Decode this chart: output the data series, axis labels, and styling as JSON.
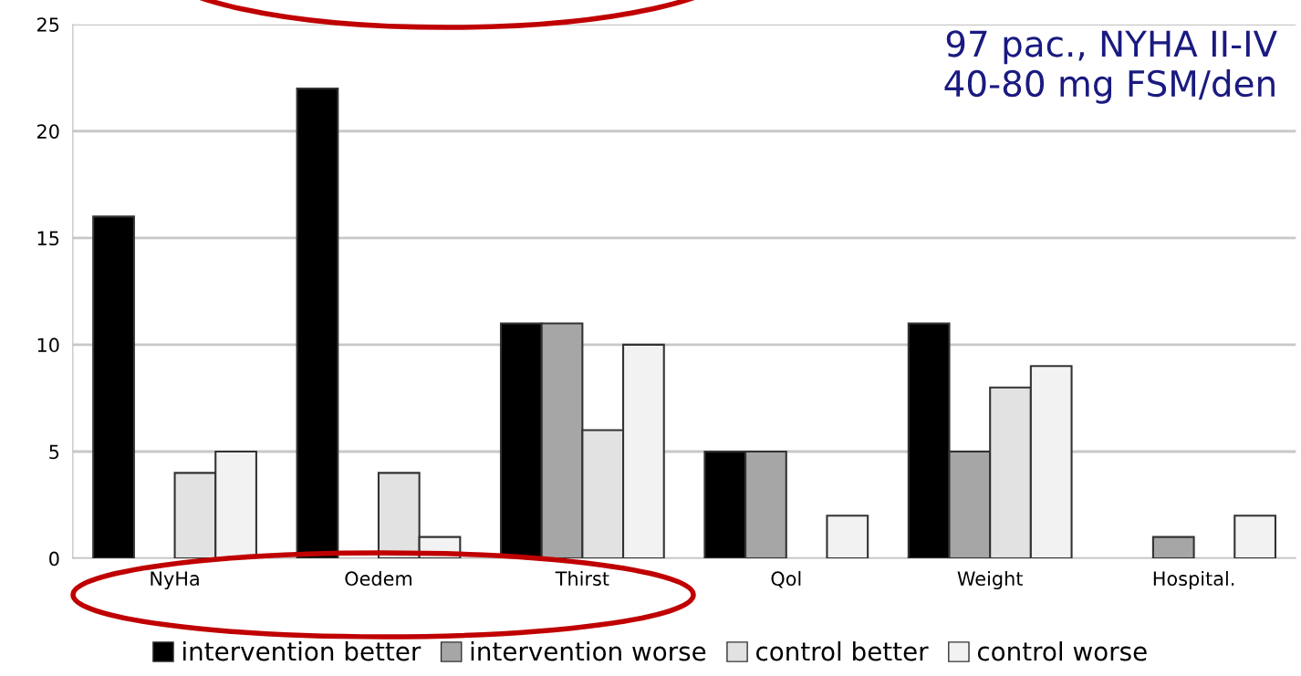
{
  "chart_data": {
    "type": "bar",
    "categories": [
      "NyHa",
      "Oedem",
      "Thirst",
      "Qol",
      "Weight",
      "Hospital."
    ],
    "series": [
      {
        "name": "intervention better",
        "color": "#000000",
        "values": [
          16,
          22,
          11,
          5,
          11,
          0
        ]
      },
      {
        "name": "intervention worse",
        "color": "#a6a6a6",
        "values": [
          0,
          0,
          11,
          5,
          5,
          1
        ]
      },
      {
        "name": "control better",
        "color": "#e2e2e2",
        "values": [
          4,
          4,
          6,
          0,
          8,
          0
        ]
      },
      {
        "name": "control worse",
        "color": "#f2f2f2",
        "values": [
          5,
          1,
          10,
          2,
          9,
          2
        ]
      }
    ],
    "ylim": [
      0,
      25
    ],
    "yticks": [
      0,
      5,
      10,
      15,
      20,
      25
    ],
    "grid": "y",
    "legend": "bottom",
    "annotations": [
      "97 pac., NYHA II-IV\n40-80 mg FSM/den"
    ]
  }
}
